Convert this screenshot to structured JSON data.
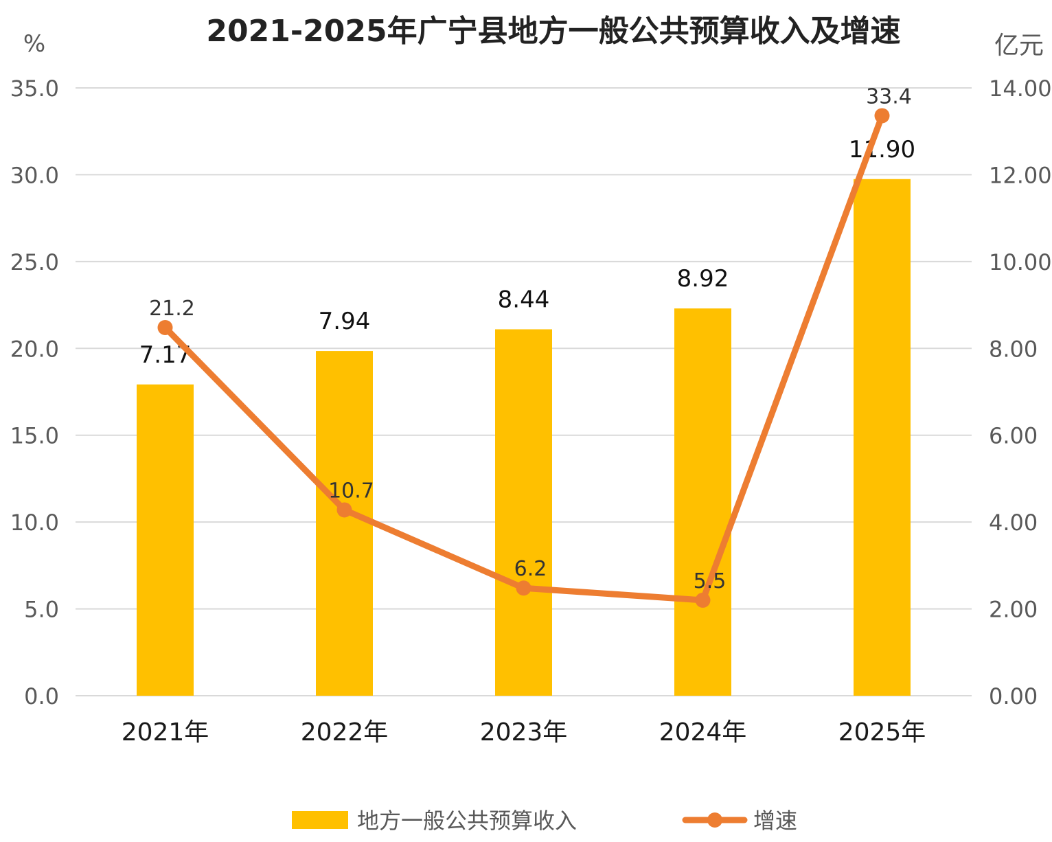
{
  "chart_data": {
    "type": "bar",
    "title": "2021-2025年广宁县地方一般公共预算收入及增速",
    "categories": [
      "2021年",
      "2022年",
      "2023年",
      "2024年",
      "2025年"
    ],
    "left_axis": {
      "unit": "%",
      "range": [
        0,
        35
      ],
      "ticks": [
        "0.0",
        "5.0",
        "10.0",
        "15.0",
        "20.0",
        "25.0",
        "30.0",
        "35.0"
      ]
    },
    "right_axis": {
      "unit": "亿元",
      "range": [
        0,
        14
      ],
      "ticks": [
        "0.00",
        "2.00",
        "4.00",
        "6.00",
        "8.00",
        "10.00",
        "12.00",
        "14.00"
      ]
    },
    "series": [
      {
        "name": "地方一般公共预算收入",
        "kind": "bar",
        "axis": "right",
        "color": "#FFC000",
        "values": [
          7.17,
          7.94,
          8.44,
          8.92,
          11.9
        ],
        "labels": [
          "7.17",
          "7.94",
          "8.44",
          "8.92",
          "11.90"
        ]
      },
      {
        "name": "增速",
        "kind": "line",
        "axis": "left",
        "color": "#ED7D31",
        "values": [
          21.2,
          10.7,
          6.2,
          5.5,
          33.4
        ],
        "labels": [
          "21.2",
          "10.7",
          "6.2",
          "5.5",
          "33.4"
        ]
      }
    ],
    "grid": true,
    "legend_position": "bottom"
  }
}
